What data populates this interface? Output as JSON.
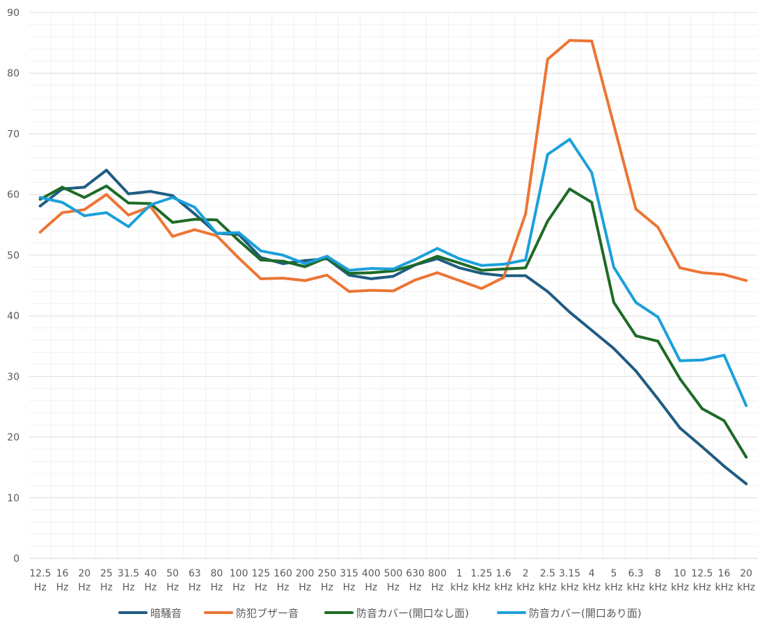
{
  "chart_data": {
    "type": "line",
    "title": "",
    "xlabel": "",
    "ylabel": "",
    "ylim": [
      0,
      90
    ],
    "yticks": [
      0,
      10,
      20,
      30,
      40,
      50,
      60,
      70,
      80,
      90
    ],
    "grid": true,
    "legend_position": "bottom",
    "categories": [
      [
        "12.5",
        "Hz"
      ],
      [
        "16",
        "Hz"
      ],
      [
        "20",
        "Hz"
      ],
      [
        "25",
        "Hz"
      ],
      [
        "31.5",
        "Hz"
      ],
      [
        "40",
        "Hz"
      ],
      [
        "50",
        "Hz"
      ],
      [
        "63",
        "Hz"
      ],
      [
        "80",
        "Hz"
      ],
      [
        "100",
        "Hz"
      ],
      [
        "125",
        "Hz"
      ],
      [
        "160",
        "Hz"
      ],
      [
        "200",
        "Hz"
      ],
      [
        "250",
        "Hz"
      ],
      [
        "315",
        "Hz"
      ],
      [
        "400",
        "Hz"
      ],
      [
        "500",
        "Hz"
      ],
      [
        "630",
        "Hz"
      ],
      [
        "800",
        "Hz"
      ],
      [
        "1",
        "kHz"
      ],
      [
        "1.25",
        "kHz"
      ],
      [
        "1.6",
        "kHz"
      ],
      [
        "2",
        "kHz"
      ],
      [
        "2.5",
        "kHz"
      ],
      [
        "3.15",
        "kHz"
      ],
      [
        "4",
        "kHz"
      ],
      [
        "5",
        "kHz"
      ],
      [
        "6.3",
        "kHz"
      ],
      [
        "8",
        "kHz"
      ],
      [
        "10",
        "kHz"
      ],
      [
        "12.5",
        "kHz"
      ],
      [
        "16",
        "kHz"
      ],
      [
        "20",
        "kHz"
      ]
    ],
    "series": [
      {
        "name": "暗騒音",
        "color": "#1F5C82",
        "values": [
          58.1,
          60.9,
          61.2,
          64.0,
          60.1,
          60.5,
          59.8,
          56.8,
          53.6,
          53.4,
          49.6,
          48.6,
          49.1,
          49.4,
          46.7,
          46.1,
          46.5,
          48.4,
          49.4,
          47.9,
          47.0,
          46.6,
          46.6,
          44.0,
          40.6,
          37.6,
          34.6,
          30.9,
          26.3,
          21.5,
          18.4,
          15.2,
          12.3
        ]
      },
      {
        "name": "防犯ブザー音",
        "color": "#EC7535",
        "values": [
          53.8,
          57.0,
          57.5,
          60.0,
          56.6,
          58.0,
          53.1,
          54.2,
          53.2,
          49.5,
          46.1,
          46.2,
          45.8,
          46.7,
          44.0,
          44.2,
          44.1,
          45.9,
          47.1,
          45.8,
          44.5,
          46.3,
          56.8,
          82.3,
          85.4,
          85.3,
          71.5,
          57.6,
          54.6,
          47.9,
          47.1,
          46.8,
          45.8
        ]
      },
      {
        "name": "防音カバー(開口なし面)",
        "color": "#1E6B26",
        "values": [
          59.2,
          61.2,
          59.5,
          61.4,
          58.6,
          58.5,
          55.4,
          55.9,
          55.8,
          52.4,
          49.2,
          49.0,
          48.1,
          49.6,
          47.0,
          47.1,
          47.4,
          48.4,
          49.8,
          48.7,
          47.5,
          47.7,
          47.9,
          55.6,
          60.9,
          58.7,
          42.2,
          36.7,
          35.8,
          29.6,
          24.7,
          22.7,
          16.7
        ]
      },
      {
        "name": "防音カバー(開口あり面)",
        "color": "#1BA0DB",
        "values": [
          59.5,
          58.7,
          56.5,
          57.0,
          54.7,
          58.3,
          59.5,
          57.9,
          53.6,
          53.7,
          50.7,
          50.0,
          48.6,
          49.8,
          47.5,
          47.8,
          47.7,
          49.3,
          51.1,
          49.4,
          48.3,
          48.5,
          49.2,
          66.6,
          69.1,
          63.6,
          48.0,
          42.2,
          39.8,
          32.6,
          32.7,
          33.5,
          25.2
        ]
      }
    ]
  }
}
